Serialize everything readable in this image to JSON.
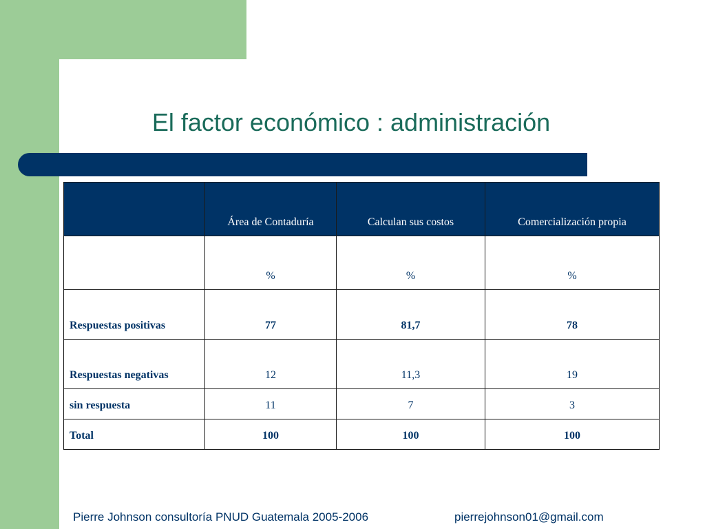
{
  "slide": {
    "title": "El factor económico : administración"
  },
  "table": {
    "headers": [
      "",
      "Área de Contaduría",
      "Calculan sus costos",
      "Comercialización propia"
    ],
    "unit_row": [
      "",
      "%",
      "%",
      "%"
    ],
    "rows": [
      {
        "label": "Respuestas positivas",
        "values": [
          "77",
          "81,7",
          "78"
        ]
      },
      {
        "label": "Respuestas negativas",
        "values": [
          "12",
          "11,3",
          "19"
        ]
      },
      {
        "label": "sin respuesta",
        "values": [
          "11",
          "7",
          "3"
        ]
      },
      {
        "label": "Total",
        "values": [
          "100",
          "100",
          "100"
        ]
      }
    ]
  },
  "footer": {
    "left": "Pierre Johnson consultoría PNUD Guatemala 2005-2006",
    "right": "pierrejohnson01@gmail.com"
  },
  "colors": {
    "green": "#9ccc97",
    "navy": "#003366",
    "title": "#1a6b5a"
  }
}
